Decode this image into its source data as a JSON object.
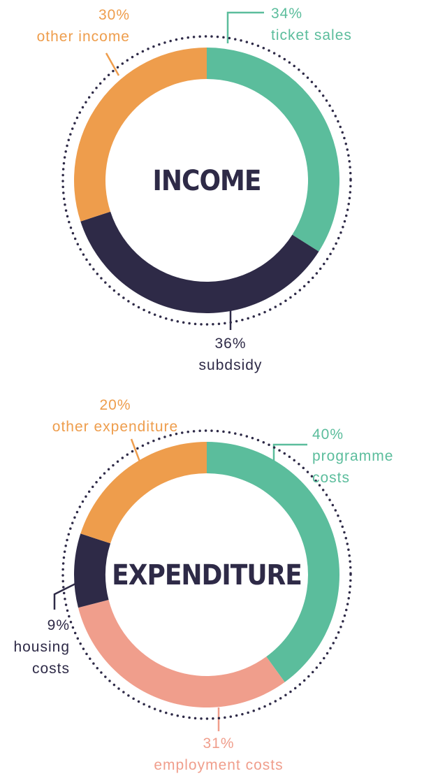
{
  "chart_data": [
    {
      "type": "donut",
      "title": "INCOME",
      "categories": [
        "ticket sales",
        "subdsidy",
        "other income"
      ],
      "values": [
        34,
        36,
        30
      ],
      "value_labels": [
        "34%",
        "36%",
        "30%"
      ],
      "colors": [
        "#5bbd9c",
        "#2e2a47",
        "#ee9d4c"
      ]
    },
    {
      "type": "donut",
      "title": "EXPENDITURE",
      "categories": [
        "programme costs",
        "employment costs",
        "housing costs",
        "other expenditure"
      ],
      "values": [
        40,
        31,
        9,
        20
      ],
      "value_labels": [
        "40%",
        "31%",
        "9%",
        "20%"
      ],
      "colors": [
        "#5bbd9c",
        "#f09e8c",
        "#2e2a47",
        "#ee9d4c"
      ]
    }
  ]
}
